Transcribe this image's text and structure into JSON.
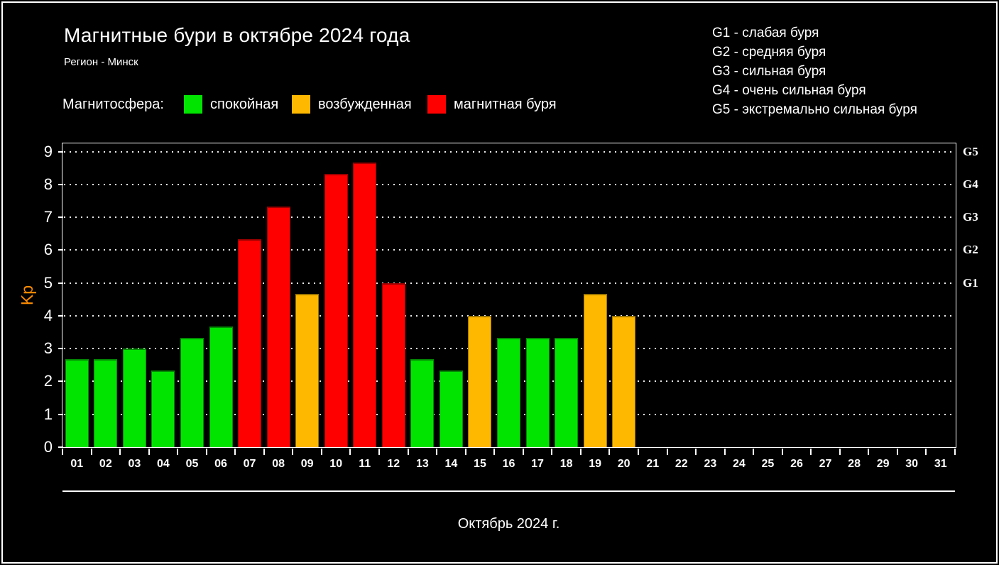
{
  "title": "Магнитные бури в октябре 2024 года",
  "subtitle": "Регион - Минск",
  "storm_scale": [
    "G1 - слабая буря",
    "G2 - средняя буря",
    "G3 - сильная буря",
    "G4 - очень сильная буря",
    "G5 - экстремально сильная буря"
  ],
  "magnetosphere_legend": {
    "label": "Магнитосфера:",
    "items": [
      {
        "label": "спокойная",
        "state": "quiet",
        "color": "#00e400"
      },
      {
        "label": "возбужденная",
        "state": "excited",
        "color": "#ffb800"
      },
      {
        "label": "магнитная буря",
        "state": "storm",
        "color": "#ff0000"
      }
    ]
  },
  "chart_data": {
    "type": "bar",
    "title": "Магнитные бури в октябре 2024 года",
    "xlabel": "Октябрь 2024 г.",
    "ylabel": "Kp",
    "ylabel_color": "#ff8c00",
    "ylim": [
      0,
      9.25
    ],
    "yticks": [
      0,
      1,
      2,
      3,
      4,
      5,
      6,
      7,
      8,
      9
    ],
    "grid": "horizontal-dotted-white",
    "legend_position": "top-left",
    "categories": [
      "01",
      "02",
      "03",
      "04",
      "05",
      "06",
      "07",
      "08",
      "09",
      "10",
      "11",
      "12",
      "13",
      "14",
      "15",
      "16",
      "17",
      "18",
      "19",
      "20",
      "21",
      "22",
      "23",
      "24",
      "25",
      "26",
      "27",
      "28",
      "29",
      "30",
      "31"
    ],
    "values": [
      2.67,
      2.67,
      3.0,
      2.33,
      3.33,
      3.67,
      6.33,
      7.33,
      4.67,
      8.33,
      8.67,
      5.0,
      2.67,
      2.33,
      4.0,
      3.33,
      3.33,
      3.33,
      4.67,
      4.0,
      null,
      null,
      null,
      null,
      null,
      null,
      null,
      null,
      null,
      null,
      null
    ],
    "statuses": [
      "quiet",
      "quiet",
      "quiet",
      "quiet",
      "quiet",
      "quiet",
      "storm",
      "storm",
      "excited",
      "storm",
      "storm",
      "storm",
      "quiet",
      "quiet",
      "excited",
      "quiet",
      "quiet",
      "quiet",
      "excited",
      "excited",
      null,
      null,
      null,
      null,
      null,
      null,
      null,
      null,
      null,
      null,
      null
    ],
    "color_map": {
      "quiet": {
        "fill": "#00e400",
        "border": "#048a04"
      },
      "excited": {
        "fill": "#ffb800",
        "border": "#9a7400"
      },
      "storm": {
        "fill": "#ff0000",
        "border": "#9a0000"
      }
    },
    "right_axis_labels": [
      {
        "label": "G5",
        "kp": 9
      },
      {
        "label": "G4",
        "kp": 8
      },
      {
        "label": "G3",
        "kp": 7
      },
      {
        "label": "G2",
        "kp": 6
      },
      {
        "label": "G1",
        "kp": 5
      }
    ]
  }
}
